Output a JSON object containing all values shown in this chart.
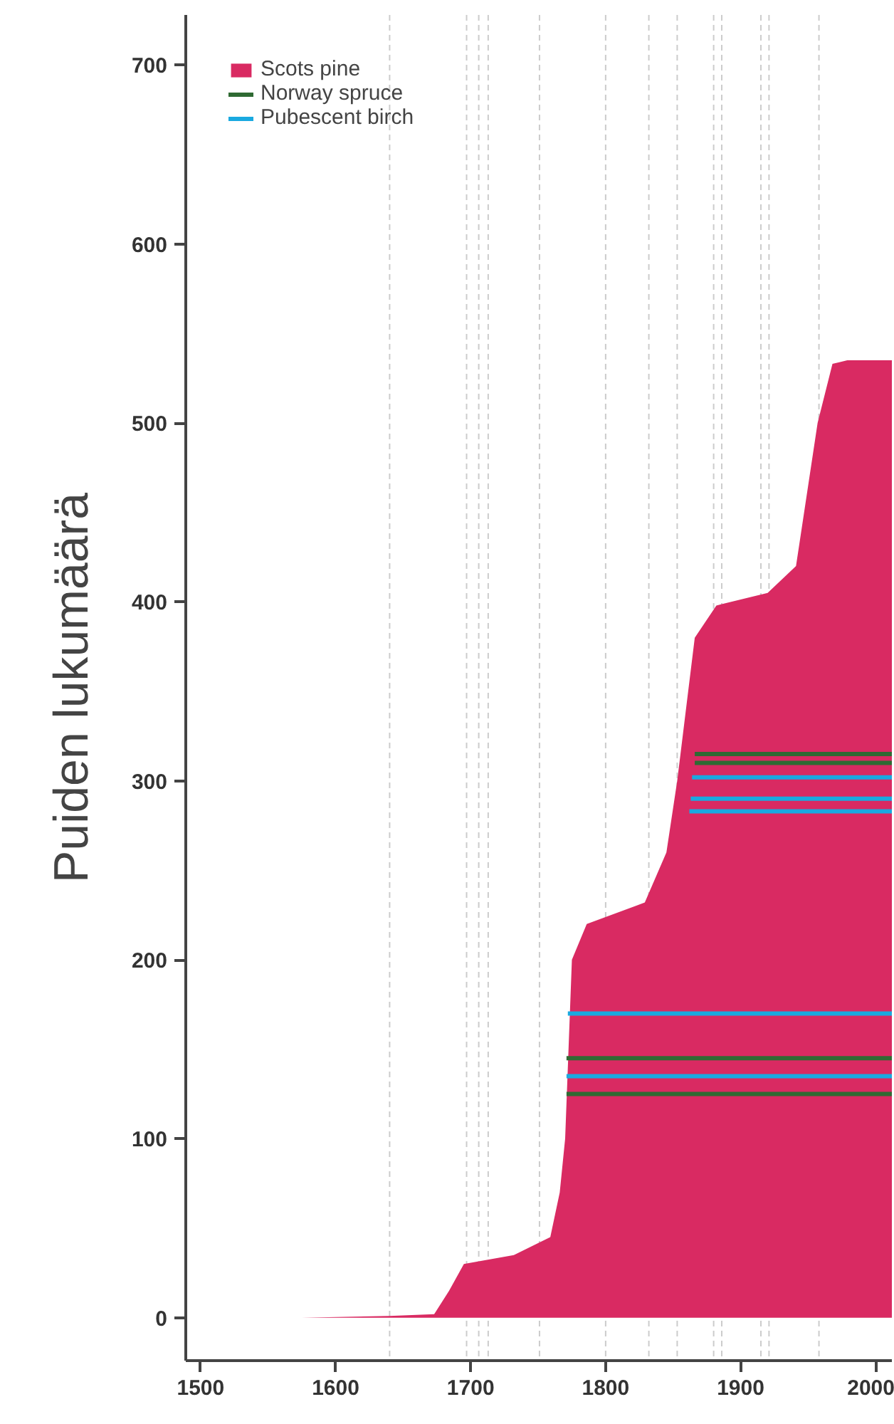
{
  "chart_data": {
    "type": "area",
    "ylabel": "Puiden lukumäärä",
    "xlim": [
      1489,
      2012
    ],
    "xticks": [
      1500,
      1600,
      1700,
      1800,
      1900,
      2000
    ],
    "ylim": [
      -24,
      728
    ],
    "yticks": [
      0,
      100,
      200,
      300,
      400,
      500,
      600,
      700
    ],
    "grid": false,
    "legend": "top left",
    "series": [
      {
        "name": "Scots pine",
        "color": "#d92a62",
        "x": [
          1575,
          1640,
          1673,
          1684,
          1695,
          1732,
          1759,
          1766,
          1770,
          1775,
          1786,
          1829,
          1845,
          1853,
          1866,
          1882,
          1920,
          1941,
          1957,
          1968,
          1979,
          2012
        ],
        "values": [
          0,
          1,
          2,
          15,
          30,
          35,
          45,
          70,
          100,
          200,
          220,
          232,
          260,
          300,
          380,
          398,
          405,
          420,
          500,
          533,
          535,
          535
        ]
      },
      {
        "name": "Norway spruce",
        "color": "#2f6a33",
        "type": "line",
        "x": [
          1771,
          2012
        ],
        "values": [
          145,
          145
        ]
      },
      {
        "color": "#2f6a33",
        "type": "line",
        "x": [
          1771,
          2012
        ],
        "values": [
          125,
          125
        ]
      },
      {
        "color": "#2f6a33",
        "type": "line",
        "x": [
          1866,
          2012
        ],
        "values": [
          315,
          315
        ]
      },
      {
        "color": "#2f6a33",
        "type": "line",
        "x": [
          1866,
          2012
        ],
        "values": [
          310,
          310
        ]
      },
      {
        "name": "Pubescent birch",
        "color": "#1aa9e0",
        "type": "line",
        "x": [
          1772,
          2012
        ],
        "values": [
          170,
          170
        ]
      },
      {
        "color": "#1aa9e0",
        "type": "line",
        "x": [
          1771,
          2012
        ],
        "values": [
          135,
          135
        ]
      },
      {
        "color": "#1aa9e0",
        "type": "line",
        "x": [
          1864,
          2012
        ],
        "values": [
          302,
          302
        ]
      },
      {
        "color": "#1aa9e0",
        "type": "line",
        "x": [
          1863,
          2012
        ],
        "values": [
          290,
          290
        ]
      },
      {
        "color": "#1aa9e0",
        "type": "line",
        "x": [
          1862,
          2012
        ],
        "values": [
          283,
          283
        ]
      }
    ],
    "ref_lines": [
      {
        "axis": "x",
        "value": 1640,
        "color": "#cccccc",
        "line_style": "dashed"
      },
      {
        "axis": "x",
        "value": 1697,
        "color": "#cccccc",
        "line_style": "dashed"
      },
      {
        "axis": "x",
        "value": 1706,
        "color": "#cccccc",
        "line_style": "dashed"
      },
      {
        "axis": "x",
        "value": 1713,
        "color": "#cccccc",
        "line_style": "dashed"
      },
      {
        "axis": "x",
        "value": 1751,
        "color": "#cccccc",
        "line_style": "dashed"
      },
      {
        "axis": "x",
        "value": 1800,
        "color": "#cccccc",
        "line_style": "dashed"
      },
      {
        "axis": "x",
        "value": 1832,
        "color": "#cccccc",
        "line_style": "dashed"
      },
      {
        "axis": "x",
        "value": 1853,
        "color": "#cccccc",
        "line_style": "dashed"
      },
      {
        "axis": "x",
        "value": 1880,
        "color": "#cccccc",
        "line_style": "dashed"
      },
      {
        "axis": "x",
        "value": 1886,
        "color": "#cccccc",
        "line_style": "dashed"
      },
      {
        "axis": "x",
        "value": 1915,
        "color": "#cccccc",
        "line_style": "dashed"
      },
      {
        "axis": "x",
        "value": 1921,
        "color": "#cccccc",
        "line_style": "dashed"
      },
      {
        "axis": "x",
        "value": 1958,
        "color": "#cccccc",
        "line_style": "dashed"
      }
    ]
  }
}
